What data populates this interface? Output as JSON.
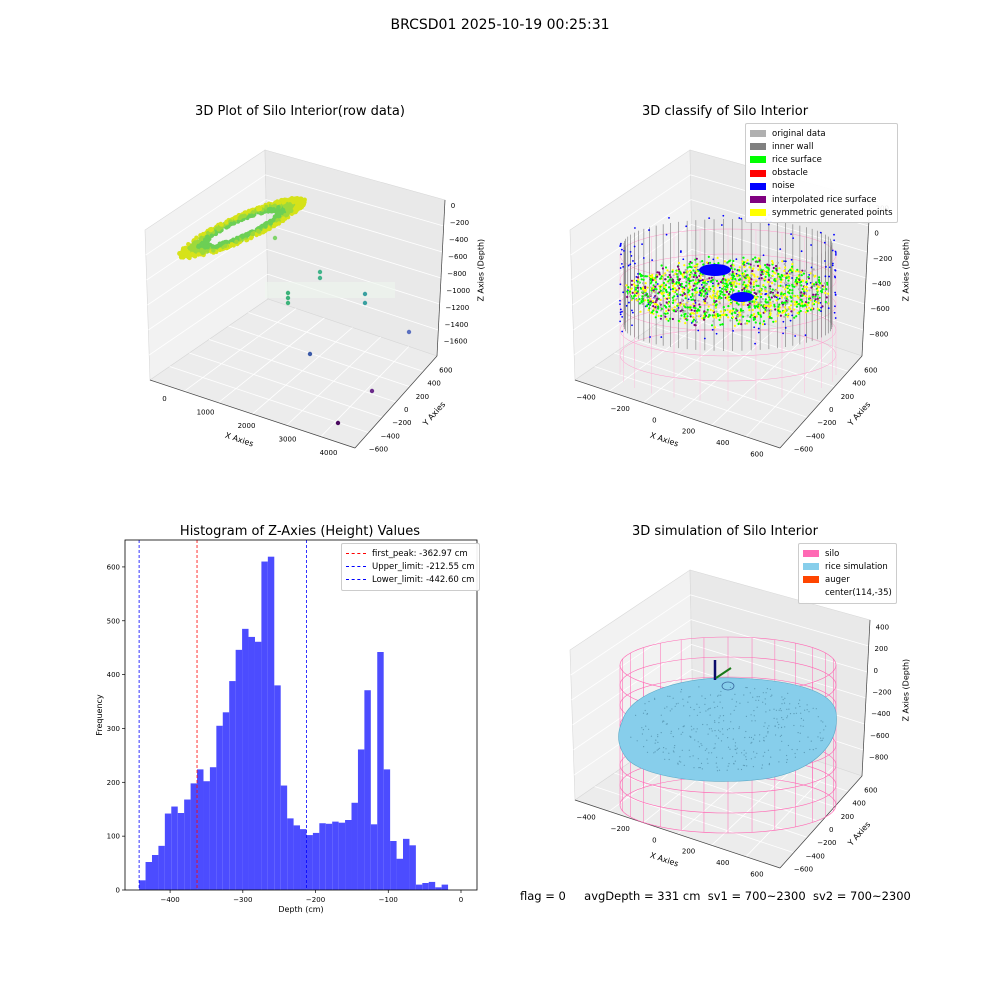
{
  "suptitle": "BRCSD01 2025-10-19 00:25:31",
  "status": {
    "flag": "flag = 0",
    "avg_depth": "avgDepth = 331 cm",
    "sv1": "sv1 = 700~2300",
    "sv2": "sv2 = 700~2300"
  },
  "raw_plot": {
    "title": "3D Plot of Silo Interior(row data)",
    "xlabel": "X Axies",
    "ylabel": "Y Axies",
    "zlabel": "Z Axies (Depth)",
    "x_ticks": [
      "0",
      "1000",
      "2000",
      "3000",
      "4000"
    ],
    "y_ticks": [
      "600",
      "400",
      "200",
      "0",
      "−200",
      "−400",
      "−600"
    ],
    "z_ticks": [
      "0",
      "−200",
      "−400",
      "−600",
      "−800",
      "−1000",
      "−1200",
      "−1400",
      "−1600"
    ]
  },
  "classify_plot": {
    "title": "3D classify of Silo Interior",
    "xlabel": "X Axies",
    "ylabel": "Y Axies",
    "zlabel": "Z Axies (Depth)",
    "x_ticks": [
      "−400",
      "−200",
      "0",
      "200",
      "400",
      "600"
    ],
    "y_ticks": [
      "600",
      "400",
      "200",
      "0",
      "−200",
      "−400",
      "−600"
    ],
    "z_ticks": [
      "200",
      "0",
      "−200",
      "−400",
      "−600",
      "−800"
    ],
    "legend": [
      {
        "label": "original data",
        "color": "#b0b0b0"
      },
      {
        "label": "inner wall",
        "color": "#808080"
      },
      {
        "label": "rice surface",
        "color": "#00ff00"
      },
      {
        "label": "obstacle",
        "color": "#ff0000"
      },
      {
        "label": "noise",
        "color": "#0000ff"
      },
      {
        "label": "interpolated rice surface",
        "color": "#800080"
      },
      {
        "label": "symmetric generated points",
        "color": "#ffff00"
      }
    ]
  },
  "sim_plot": {
    "title": "3D simulation of Silo Interior",
    "xlabel": "X Axies",
    "ylabel": "Y Axies",
    "zlabel": "Z Axies (Depth)",
    "x_ticks": [
      "−400",
      "−200",
      "0",
      "200",
      "400",
      "600"
    ],
    "y_ticks": [
      "600",
      "400",
      "200",
      "0",
      "−200",
      "−400",
      "−600"
    ],
    "z_ticks": [
      "400",
      "200",
      "0",
      "−200",
      "−400",
      "−600",
      "−800"
    ],
    "legend": [
      {
        "label": "silo",
        "color": "#ff69b4"
      },
      {
        "label": "rice simulation",
        "color": "#87ceeb"
      },
      {
        "label": "auger",
        "color": "#ff4500"
      },
      {
        "label": "center(114,-35)",
        "color": ""
      }
    ]
  },
  "chart_data": {
    "type": "bar",
    "title": "Histogram of Z-Axies (Height) Values",
    "xlabel": "Depth (cm)",
    "ylabel": "Frequency",
    "xlim": [
      -462,
      22
    ],
    "ylim": [
      0,
      650
    ],
    "x_ticks": [
      -400,
      -300,
      -200,
      -100,
      0
    ],
    "y_ticks": [
      0,
      100,
      200,
      300,
      400,
      500,
      600
    ],
    "bar_color": "#4c4cff",
    "bin_start": -442.6,
    "bin_width": 8.85,
    "values": [
      18,
      52,
      65,
      82,
      142,
      155,
      143,
      168,
      198,
      224,
      202,
      228,
      305,
      330,
      388,
      446,
      485,
      470,
      461,
      610,
      619,
      380,
      194,
      133,
      120,
      113,
      102,
      106,
      124,
      123,
      127,
      125,
      130,
      162,
      261,
      371,
      122,
      442,
      224,
      91,
      58,
      95,
      83,
      10,
      13,
      15,
      5,
      10
    ],
    "lines": [
      {
        "name": "first_peak",
        "value": -362.97,
        "label": "first_peak: -362.97 cm",
        "color": "#ff0000"
      },
      {
        "name": "Upper_limit",
        "value": -212.55,
        "label": "Upper_limit: -212.55 cm",
        "color": "#0000ff"
      },
      {
        "name": "Lower_limit",
        "value": -442.6,
        "label": "Lower_limit: -442.60 cm",
        "color": "#0000ff"
      }
    ],
    "legend_position": "top-right",
    "grid": false
  }
}
